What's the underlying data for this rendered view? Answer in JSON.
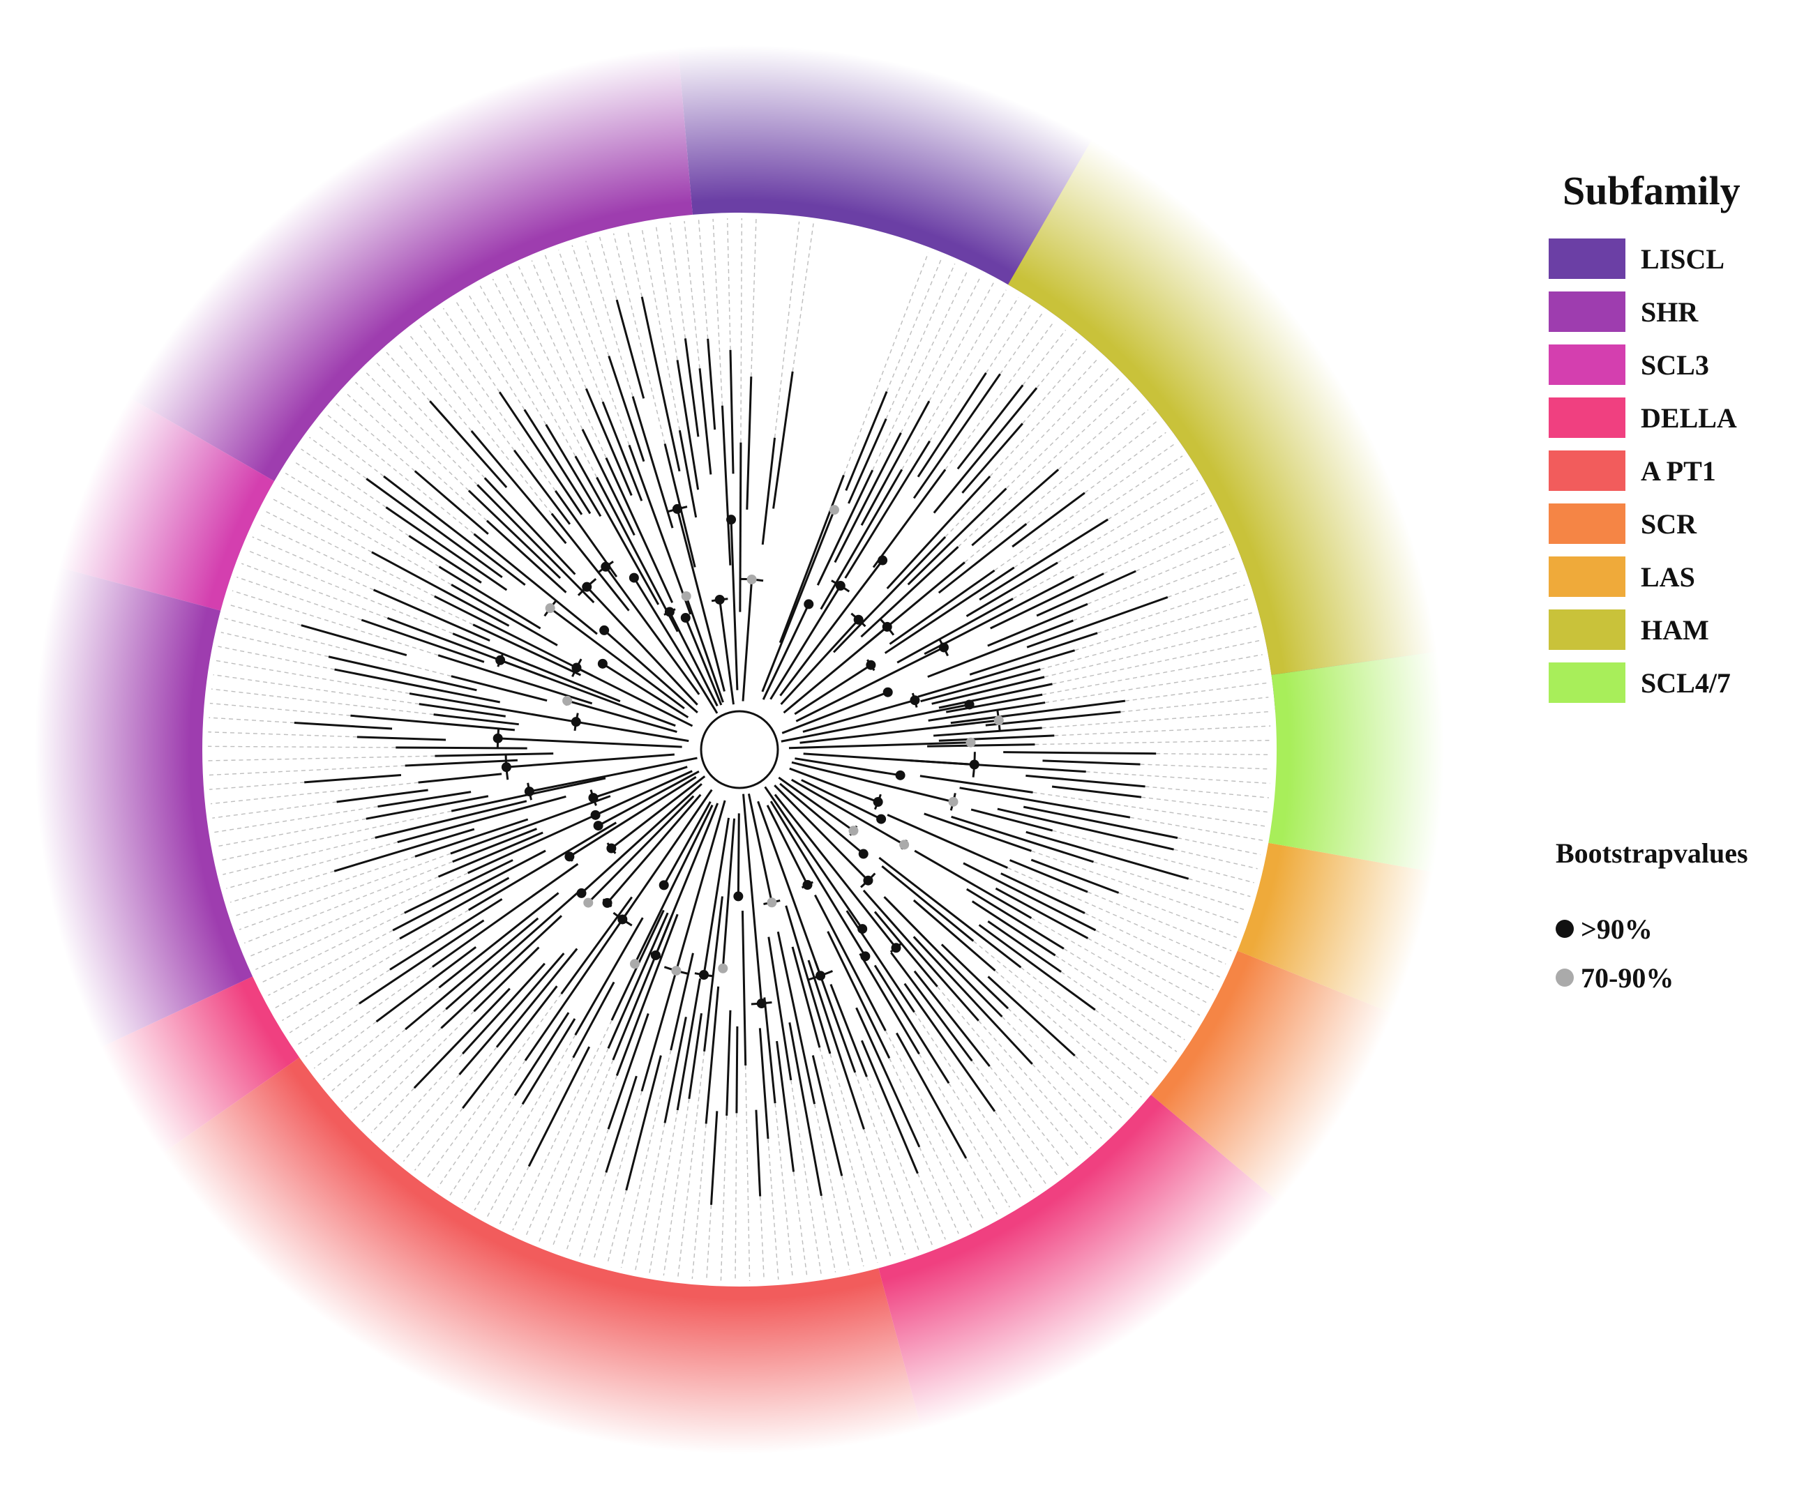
{
  "legend": {
    "title": "Subfamily",
    "items": [
      {
        "name": "LISCL",
        "color": "#6B3FA5"
      },
      {
        "name": "SHR",
        "color": "#9E3DAF"
      },
      {
        "name": "SCL3",
        "color": "#D43FAF"
      },
      {
        "name": "DELLA",
        "color": "#F04080"
      },
      {
        "name": "A PT1",
        "color": "#F25C5C"
      },
      {
        "name": "SCR",
        "color": "#F58545"
      },
      {
        "name": "LAS",
        "color": "#EFAA3A"
      },
      {
        "name": "HAM",
        "color": "#C9C23A"
      },
      {
        "name": "SCL4/7",
        "color": "#A8EE5A"
      }
    ]
  },
  "bootstrap": {
    "title": "Bootstrapvalues",
    "items": [
      {
        "label": ">90%",
        "color": "#111111"
      },
      {
        "label": "70-90%",
        "color": "#AAAAAA"
      }
    ]
  },
  "tree": {
    "bands": [
      {
        "subfamily": "LISCL",
        "start_deg": -22,
        "end_deg": -4,
        "color": "#6B3FA5"
      },
      {
        "subfamily": "LISCL",
        "start_deg": -95,
        "end_deg": -24,
        "color": "#6B3FA5"
      },
      {
        "subfamily": "SHR",
        "start_deg": -150,
        "end_deg": -95,
        "color": "#9E3DAF"
      },
      {
        "subfamily": "SCL3",
        "start_deg": -165,
        "end_deg": -150,
        "color": "#D43FAF"
      },
      {
        "subfamily": "SHR",
        "start_deg": -205,
        "end_deg": -165,
        "color": "#9E3DAF"
      },
      {
        "subfamily": "DELLA",
        "start_deg": -215,
        "end_deg": -205,
        "color": "#F04080"
      },
      {
        "subfamily": "A PT1",
        "start_deg": -285,
        "end_deg": -215,
        "color": "#F25C5C"
      },
      {
        "subfamily": "DELLA",
        "start_deg": -320,
        "end_deg": -285,
        "color": "#F04080"
      },
      {
        "subfamily": "SCR",
        "start_deg": -338,
        "end_deg": -320,
        "color": "#F58545"
      },
      {
        "subfamily": "LAS",
        "start_deg": -350,
        "end_deg": -338,
        "color": "#EFAA3A"
      },
      {
        "subfamily": "SCL4/7",
        "start_deg": -368,
        "end_deg": -350,
        "color": "#A8EE5A"
      },
      {
        "subfamily": "HAM",
        "start_deg": -420,
        "end_deg": -368,
        "color": "#C9C23A"
      }
    ]
  }
}
